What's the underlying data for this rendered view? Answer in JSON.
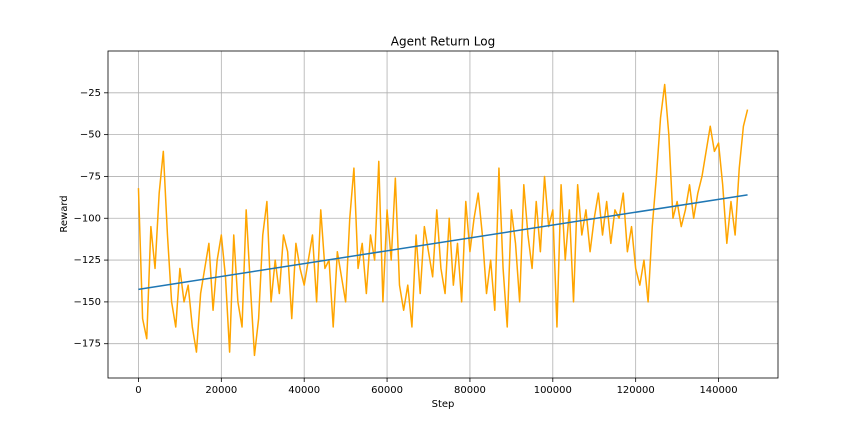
{
  "chart_data": {
    "type": "line",
    "title": "Agent Return Log",
    "x_label": "Step",
    "y_label": "Reward",
    "grid": true,
    "xlim": [
      -7350,
      154350
    ],
    "ylim": [
      -195.5,
      0
    ],
    "xticks": [
      0,
      20000,
      40000,
      60000,
      80000,
      100000,
      120000,
      140000
    ],
    "yticks": [
      {
        "value": -175,
        "label": "−175"
      },
      {
        "value": -150,
        "label": "−150"
      },
      {
        "value": -125,
        "label": "−125"
      },
      {
        "value": -100,
        "label": "−100"
      },
      {
        "value": -75,
        "label": "−75"
      },
      {
        "value": -50,
        "label": "−50"
      },
      {
        "value": -25,
        "label": "−25"
      }
    ],
    "series": [
      {
        "color": "#ffa500",
        "x": [
          0,
          1000,
          2000,
          3000,
          4000,
          5000,
          6000,
          7000,
          8000,
          9000,
          10000,
          11000,
          12000,
          13000,
          14000,
          15000,
          16000,
          17000,
          18000,
          19000,
          20000,
          21000,
          22000,
          23000,
          24000,
          25000,
          26000,
          27000,
          28000,
          29000,
          30000,
          31000,
          32000,
          33000,
          34000,
          35000,
          36000,
          37000,
          38000,
          39000,
          40000,
          41000,
          42000,
          43000,
          44000,
          45000,
          46000,
          47000,
          48000,
          49000,
          50000,
          51000,
          52000,
          53000,
          54000,
          55000,
          56000,
          57000,
          58000,
          59000,
          60000,
          61000,
          62000,
          63000,
          64000,
          65000,
          66000,
          67000,
          68000,
          69000,
          70000,
          71000,
          72000,
          73000,
          74000,
          75000,
          76000,
          77000,
          78000,
          79000,
          80000,
          81000,
          82000,
          83000,
          84000,
          85000,
          86000,
          87000,
          88000,
          89000,
          90000,
          91000,
          92000,
          93000,
          94000,
          95000,
          96000,
          97000,
          98000,
          99000,
          100000,
          101000,
          102000,
          103000,
          104000,
          105000,
          106000,
          107000,
          108000,
          109000,
          110000,
          111000,
          112000,
          113000,
          114000,
          115000,
          116000,
          117000,
          118000,
          119000,
          120000,
          121000,
          122000,
          123000,
          124000,
          125000,
          126000,
          127000,
          128000,
          129000,
          130000,
          131000,
          132000,
          133000,
          134000,
          135000,
          136000,
          137000,
          138000,
          139000,
          140000,
          141000,
          142000,
          143000,
          144000,
          145000,
          146000,
          147000
        ],
        "values": [
          -82,
          -160,
          -172,
          -105,
          -130,
          -85,
          -60,
          -110,
          -150,
          -165,
          -130,
          -150,
          -140,
          -165,
          -180,
          -145,
          -130,
          -115,
          -155,
          -125,
          -110,
          -135,
          -180,
          -110,
          -150,
          -165,
          -95,
          -140,
          -182,
          -160,
          -110,
          -90,
          -150,
          -125,
          -145,
          -110,
          -120,
          -160,
          -115,
          -130,
          -140,
          -125,
          -110,
          -150,
          -95,
          -130,
          -125,
          -165,
          -120,
          -135,
          -150,
          -100,
          -70,
          -130,
          -115,
          -145,
          -110,
          -125,
          -66,
          -150,
          -95,
          -125,
          -76,
          -140,
          -155,
          -140,
          -165,
          -110,
          -145,
          -105,
          -120,
          -135,
          -95,
          -130,
          -145,
          -100,
          -140,
          -115,
          -150,
          -90,
          -120,
          -100,
          -85,
          -110,
          -145,
          -125,
          -155,
          -70,
          -130,
          -165,
          -95,
          -115,
          -150,
          -80,
          -110,
          -130,
          -90,
          -120,
          -75,
          -105,
          -95,
          -165,
          -80,
          -125,
          -95,
          -150,
          -80,
          -110,
          -95,
          -120,
          -100,
          -85,
          -110,
          -90,
          -115,
          -95,
          -100,
          -85,
          -120,
          -105,
          -130,
          -140,
          -125,
          -150,
          -105,
          -75,
          -40,
          -20,
          -50,
          -100,
          -90,
          -105,
          -95,
          -80,
          -100,
          -85,
          -75,
          -60,
          -45,
          -60,
          -55,
          -80,
          -115,
          -90,
          -110,
          -70,
          -45,
          -35
        ]
      },
      {
        "color": "#1f77b4",
        "x": [
          0,
          147000
        ],
        "values": [
          -142.5,
          -86
        ]
      }
    ]
  }
}
